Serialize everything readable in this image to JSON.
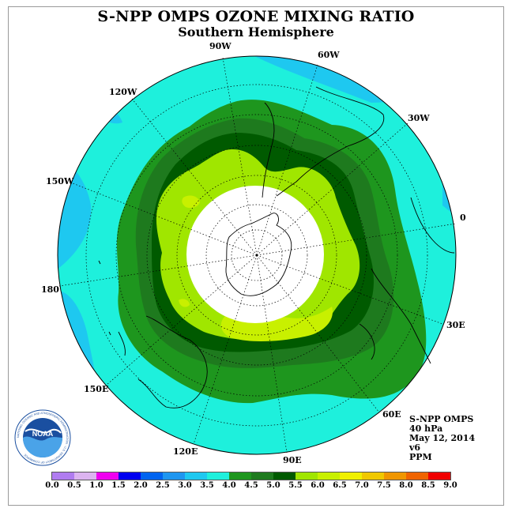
{
  "title": "S-NPP OMPS OZONE MIXING RATIO",
  "subtitle": "Southern Hemisphere",
  "logo_text": "NOAA",
  "logo_ring_text": "NATIONAL OCEANIC AND ATMOSPHERIC ADMINISTRATION · U.S. DEPARTMENT OF COMMERCE",
  "longitude_labels": [
    "90W",
    "60W",
    "30W",
    "0",
    "30E",
    "60E",
    "90E",
    "120E",
    "150E",
    "180",
    "150W",
    "120W"
  ],
  "info": {
    "instrument": "S-NPP OMPS",
    "level": "40 hPa",
    "date": "May 12, 2014",
    "version": "v6",
    "units": "PPM"
  },
  "colorbar": {
    "ticks": [
      "0.0",
      "0.5",
      "1.0",
      "1.5",
      "2.0",
      "2.5",
      "3.0",
      "3.5",
      "4.0",
      "4.5",
      "5.0",
      "5.5",
      "6.0",
      "6.5",
      "7.0",
      "7.5",
      "8.0",
      "8.5",
      "9.0"
    ],
    "colors": [
      "#b07cf0",
      "#dcb4f0",
      "#f000f0",
      "#0000f0",
      "#0064f0",
      "#1e96f0",
      "#1ec8f0",
      "#1ef0dc",
      "#1e961e",
      "#1e7a1e",
      "#005a00",
      "#a0e600",
      "#c8f000",
      "#f0f000",
      "#f0c800",
      "#f09600",
      "#f06400",
      "#f00000",
      "#8c5a3c"
    ]
  }
}
